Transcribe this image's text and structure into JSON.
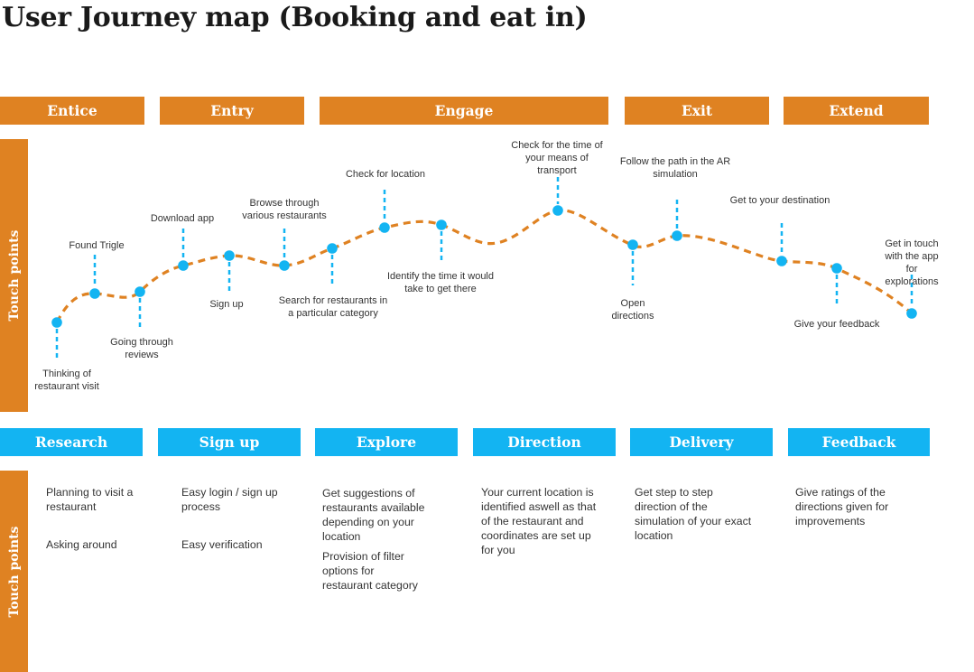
{
  "title": "User Journey map (Booking and eat in)",
  "side_label": "Touch points",
  "colors": {
    "orange": "#df8222",
    "blue": "#13b4f2",
    "dash": "#13b4f2",
    "curve": "#df8222"
  },
  "stages": [
    "Entice",
    "Entry",
    "Engage",
    "Exit",
    "Extend"
  ],
  "phases": [
    "Research",
    "Sign up",
    "Explore",
    "Direction",
    "Delivery",
    "Feedback"
  ],
  "touchpoints": [
    {
      "label": "Thinking of\nrestaurant visit"
    },
    {
      "label": "Found Trigle"
    },
    {
      "label": "Going through\nreviews"
    },
    {
      "label": "Download app"
    },
    {
      "label": "Sign up"
    },
    {
      "label": "Browse through\nvarious restaurants"
    },
    {
      "label": "Search for restaurants in\na particular category"
    },
    {
      "label": "Check for location"
    },
    {
      "label": "Identify the time it would\ntake to get there"
    },
    {
      "label": "Check for the time of\nyour means of\ntransport"
    },
    {
      "label": "Open\ndirections"
    },
    {
      "label": "Follow the path in the AR\nsimulation"
    },
    {
      "label": "Get to your destination"
    },
    {
      "label": "Give your feedback"
    },
    {
      "label": "Get in touch with the app\nfor explorations"
    }
  ],
  "details": [
    [
      "Planning to visit a\nrestaurant",
      "Asking around"
    ],
    [
      "Easy login / sign up\nprocess",
      "Easy verification"
    ],
    [
      "Get suggestions of\nrestaurants available\ndepending on your\nlocation",
      "Provision of filter\noptions for\nrestaurant category"
    ],
    [
      "Your current location is\nidentified aswell as that\nof the restaurant and\ncoordinates are set up\nfor you"
    ],
    [
      "Get step to step\ndirection of the\nsimulation of your exact\nlocation"
    ],
    [
      "Give ratings of the\ndirections given for\nimprovements"
    ]
  ]
}
